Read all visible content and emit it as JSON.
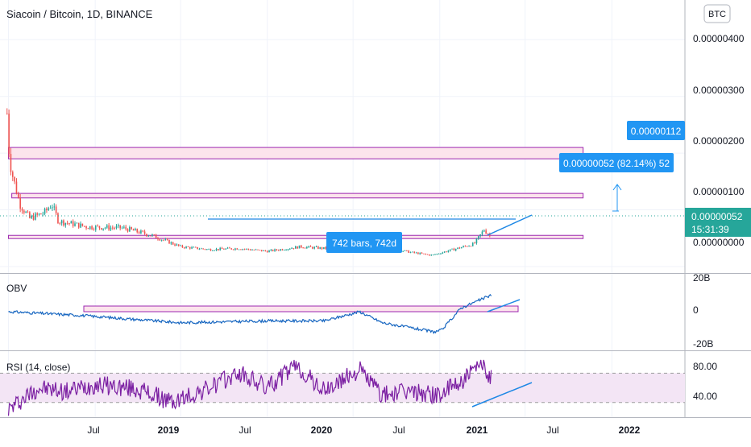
{
  "header": {
    "title": "Siacoin / Bitcoin, 1D, BINANCE",
    "currency_button": "BTC"
  },
  "price_pane": {
    "axis_ticks": [
      "0.00000400",
      "0.00000300",
      "0.00000200",
      "0.00000100",
      "0.00000000"
    ],
    "last_price": "0.00000052",
    "countdown": "15:31:39",
    "label_target": "0.00000112",
    "label_change": "0.00000052 (82.14%) 52",
    "label_bars": "742 bars, 742d"
  },
  "obv_pane": {
    "title": "OBV",
    "axis_ticks": [
      "20B",
      "0",
      "-20B"
    ]
  },
  "rsi_pane": {
    "title": "RSI (14, close)",
    "axis_ticks": [
      "80.00",
      "40.00"
    ]
  },
  "time_axis": {
    "labels": [
      "Jul",
      "2019",
      "Jul",
      "2020",
      "Jul",
      "2021",
      "Jul",
      "2022"
    ]
  },
  "colors": {
    "up": "#26a69a",
    "down": "#ef5350",
    "obv_line": "#2962ff",
    "rsi_line": "#7b1fa2",
    "zone_fill": "#fce4ec",
    "zone_border": "#9c27b0",
    "label_bg": "#2196f3",
    "last_price_bg": "#26a69a"
  },
  "chart_data": [
    {
      "type": "candlestick",
      "title": "Siacoin / Bitcoin, 1D, BINANCE",
      "price_points": [
        {
          "x": "2018-06-28",
          "y": 2.7e-06
        },
        {
          "x": "2018-07-03",
          "y": 1.9e-06
        },
        {
          "x": "2018-07-10",
          "y": 1.6e-06
        },
        {
          "x": "2018-07-25",
          "y": 1.1e-06
        },
        {
          "x": "2018-08-15",
          "y": 8.5e-07
        },
        {
          "x": "2018-09-15",
          "y": 9.5e-07
        },
        {
          "x": "2018-10-01",
          "y": 1.1e-06
        },
        {
          "x": "2018-10-15",
          "y": 8e-07
        },
        {
          "x": "2018-11-15",
          "y": 7.5e-07
        },
        {
          "x": "2018-12-15",
          "y": 7e-07
        },
        {
          "x": "2019-03-01",
          "y": 6.8e-07
        },
        {
          "x": "2019-05-01",
          "y": 5.5e-07
        },
        {
          "x": "2019-07-01",
          "y": 3.5e-07
        },
        {
          "x": "2019-09-01",
          "y": 3e-07
        },
        {
          "x": "2019-11-01",
          "y": 3.2e-07
        },
        {
          "x": "2020-01-01",
          "y": 2.7e-07
        },
        {
          "x": "2020-03-12",
          "y": 3.5e-07
        },
        {
          "x": "2020-05-01",
          "y": 3.2e-07
        },
        {
          "x": "2020-07-15",
          "y": 4e-07
        },
        {
          "x": "2020-09-01",
          "y": 3.5e-07
        },
        {
          "x": "2020-11-01",
          "y": 2.5e-07
        },
        {
          "x": "2020-12-15",
          "y": 2e-07
        },
        {
          "x": "2021-01-20",
          "y": 2.8e-07
        },
        {
          "x": "2021-03-15",
          "y": 4e-07
        },
        {
          "x": "2021-04-05",
          "y": 6.5e-07
        },
        {
          "x": "2021-04-20",
          "y": 5.2e-07
        }
      ],
      "y_range": [
        -1e-07,
        4.7e-06
      ],
      "x_range": [
        "2018-06-13",
        "2022-06-05"
      ],
      "zones": [
        {
          "from": 1.9e-06,
          "to": 2.1e-06
        },
        {
          "from": 1.21e-06,
          "to": 1.29e-06
        },
        {
          "from": 5.1e-07,
          "to": 5.5e-07
        }
      ]
    },
    {
      "type": "line",
      "title": "OBV",
      "y_range": [
        -21000000000,
        21000000000
      ],
      "points": [
        {
          "x": "2018-07-01",
          "y": 0
        },
        {
          "x": "2018-12-01",
          "y": -2000000000
        },
        {
          "x": "2019-07-01",
          "y": -6000000000
        },
        {
          "x": "2020-01-01",
          "y": -5000000000
        },
        {
          "x": "2020-05-01",
          "y": -5000000000
        },
        {
          "x": "2020-07-15",
          "y": 0
        },
        {
          "x": "2020-09-01",
          "y": -6000000000
        },
        {
          "x": "2020-12-20",
          "y": -11000000000
        },
        {
          "x": "2021-01-05",
          "y": -10000000000
        },
        {
          "x": "2021-02-15",
          "y": 2000000000
        },
        {
          "x": "2021-04-20",
          "y": 9000000000
        }
      ]
    },
    {
      "type": "line",
      "title": "RSI (14, close)",
      "y_range": [
        10,
        100
      ],
      "band": [
        30,
        70
      ],
      "points": [
        {
          "x": "2018-07-01",
          "y": 20
        },
        {
          "x": "2018-09-01",
          "y": 50
        },
        {
          "x": "2018-11-01",
          "y": 45
        },
        {
          "x": "2019-01-01",
          "y": 55
        },
        {
          "x": "2019-04-01",
          "y": 48
        },
        {
          "x": "2019-06-15",
          "y": 30
        },
        {
          "x": "2019-09-01",
          "y": 50
        },
        {
          "x": "2019-11-01",
          "y": 70
        },
        {
          "x": "2020-01-01",
          "y": 50
        },
        {
          "x": "2020-03-01",
          "y": 80
        },
        {
          "x": "2020-05-01",
          "y": 45
        },
        {
          "x": "2020-07-15",
          "y": 75
        },
        {
          "x": "2020-09-01",
          "y": 40
        },
        {
          "x": "2020-11-01",
          "y": 45
        },
        {
          "x": "2021-01-01",
          "y": 40
        },
        {
          "x": "2021-03-01",
          "y": 65
        },
        {
          "x": "2021-04-05",
          "y": 82
        },
        {
          "x": "2021-04-20",
          "y": 62
        }
      ]
    }
  ]
}
